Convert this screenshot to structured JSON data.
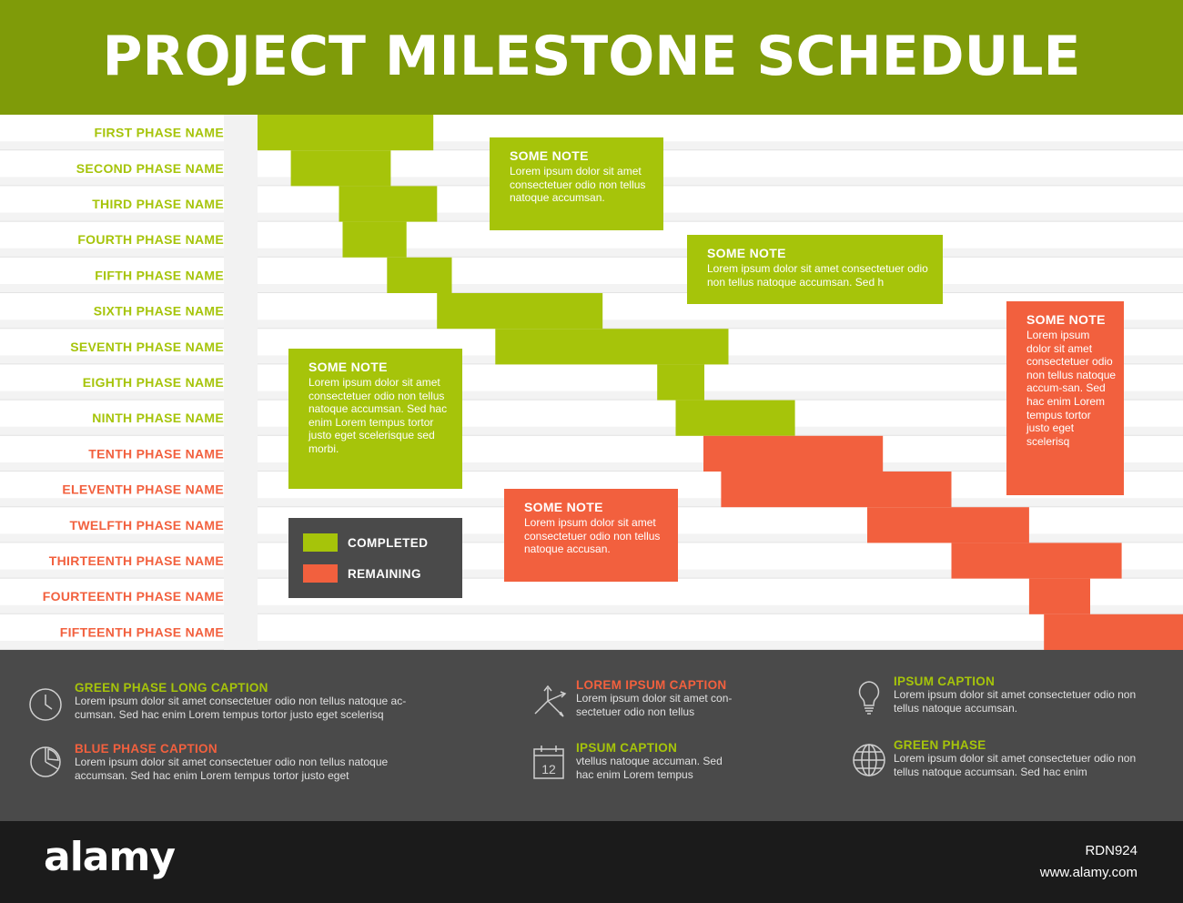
{
  "title": "PROJECT MILESTONE SCHEDULE",
  "colors": {
    "completed": "#a6c40a",
    "remaining": "#f2603e",
    "header_bg": "#7f9b09",
    "footer_bg": "#4a4a4a"
  },
  "chart_data": {
    "type": "gantt",
    "title": "PROJECT MILESTONE SCHEDULE",
    "categories": [
      "FIRST PHASE NAME",
      "SECOND PHASE NAME",
      "THIRD PHASE NAME",
      "FOURTH PHASE NAME",
      "FIFTH PHASE NAME",
      "SIXTH PHASE NAME",
      "SEVENTH PHASE NAME",
      "EIGHTH PHASE NAME",
      "NINTH PHASE NAME",
      "TENTH PHASE NAME",
      "ELEVENTH PHASE NAME",
      "TWELFTH PHASE NAME",
      "THIRTEENTH PHASE NAME",
      "FOURTEENTH PHASE NAME",
      "FIFTEENTH PHASE NAME"
    ],
    "start": [
      0.0,
      3.6,
      8.8,
      9.2,
      14.0,
      19.4,
      25.7,
      43.2,
      45.2,
      48.2,
      50.1,
      65.9,
      75.0,
      83.4,
      85.0
    ],
    "end": [
      19.0,
      14.4,
      19.4,
      16.1,
      21.0,
      37.3,
      50.9,
      48.3,
      58.1,
      67.6,
      75.0,
      83.4,
      93.4,
      90.0,
      102.0
    ],
    "status": [
      "completed",
      "completed",
      "completed",
      "completed",
      "completed",
      "completed",
      "completed",
      "completed",
      "completed",
      "remaining",
      "remaining",
      "remaining",
      "remaining",
      "remaining",
      "remaining"
    ],
    "xlim": [
      0,
      102
    ],
    "legend": [
      "COMPLETED",
      "REMAINING"
    ],
    "legend_position": "bottom-left inside chart",
    "grid": false
  },
  "notes": [
    {
      "title": "SOME NOTE",
      "text": "Lorem ipsum dolor sit amet consectetuer odio non tellus natoque accumsan.",
      "color": "green"
    },
    {
      "title": "SOME NOTE",
      "text": "Lorem ipsum dolor sit amet consectetuer odio non tellus natoque accumsan. Sed h",
      "color": "green"
    },
    {
      "title": "SOME NOTE",
      "text": "Lorem ipsum dolor sit amet consectetuer odio non tellus natoque accumsan. Sed hac enim Lorem tempus tortor justo eget scelerisque sed morbi.",
      "color": "green"
    },
    {
      "title": "SOME NOTE",
      "text": "Lorem ipsum dolor sit amet consectetuer odio non tellus natoque accusan.",
      "color": "red"
    },
    {
      "title": "SOME NOTE",
      "text": "Lorem ipsum dolor sit amet consectetuer odio non tellus natoque accum-san. Sed hac enim Lorem tempus tortor justo eget scelerisq",
      "color": "red"
    }
  ],
  "legend": {
    "completed": "COMPLETED",
    "remaining": "REMAINING"
  },
  "footer": {
    "items": [
      {
        "title": "GREEN PHASE LONG CAPTION",
        "text": "Lorem ipsum dolor sit amet consectetuer odio non tellus natoque ac-cumsan. Sed hac enim Lorem tempus tortor justo eget scelerisq",
        "icon": "clock-icon",
        "color": "green"
      },
      {
        "title": "BLUE PHASE CAPTION",
        "text": "Lorem ipsum dolor sit amet consectetuer odio non tellus natoque accumsan. Sed hac enim Lorem tempus tortor justo eget",
        "icon": "pie-chart-icon",
        "color": "red"
      },
      {
        "title": "LOREM IPSUM CAPTION",
        "text": "Lorem ipsum dolor sit amet con-sectetuer odio non tellus",
        "icon": "arrows-icon",
        "color": "red"
      },
      {
        "title": "IPSUM CAPTION",
        "text": "vtellus natoque accuman. Sed hac enim Lorem tempus",
        "icon": "calendar-icon",
        "calendar_number": "12",
        "color": "green"
      },
      {
        "title": "IPSUM CAPTION",
        "text": "Lorem ipsum dolor sit amet consectetuer odio non tellus natoque accumsan.",
        "icon": "lightbulb-icon",
        "color": "green"
      },
      {
        "title": "GREEN PHASE",
        "text": "Lorem ipsum dolor sit amet consectetuer odio non tellus natoque accumsan. Sed hac enim",
        "icon": "globe-icon",
        "color": "green"
      }
    ]
  },
  "watermark": {
    "brand": "alamy",
    "image_id": "RDN924",
    "site": "www.alamy.com"
  }
}
